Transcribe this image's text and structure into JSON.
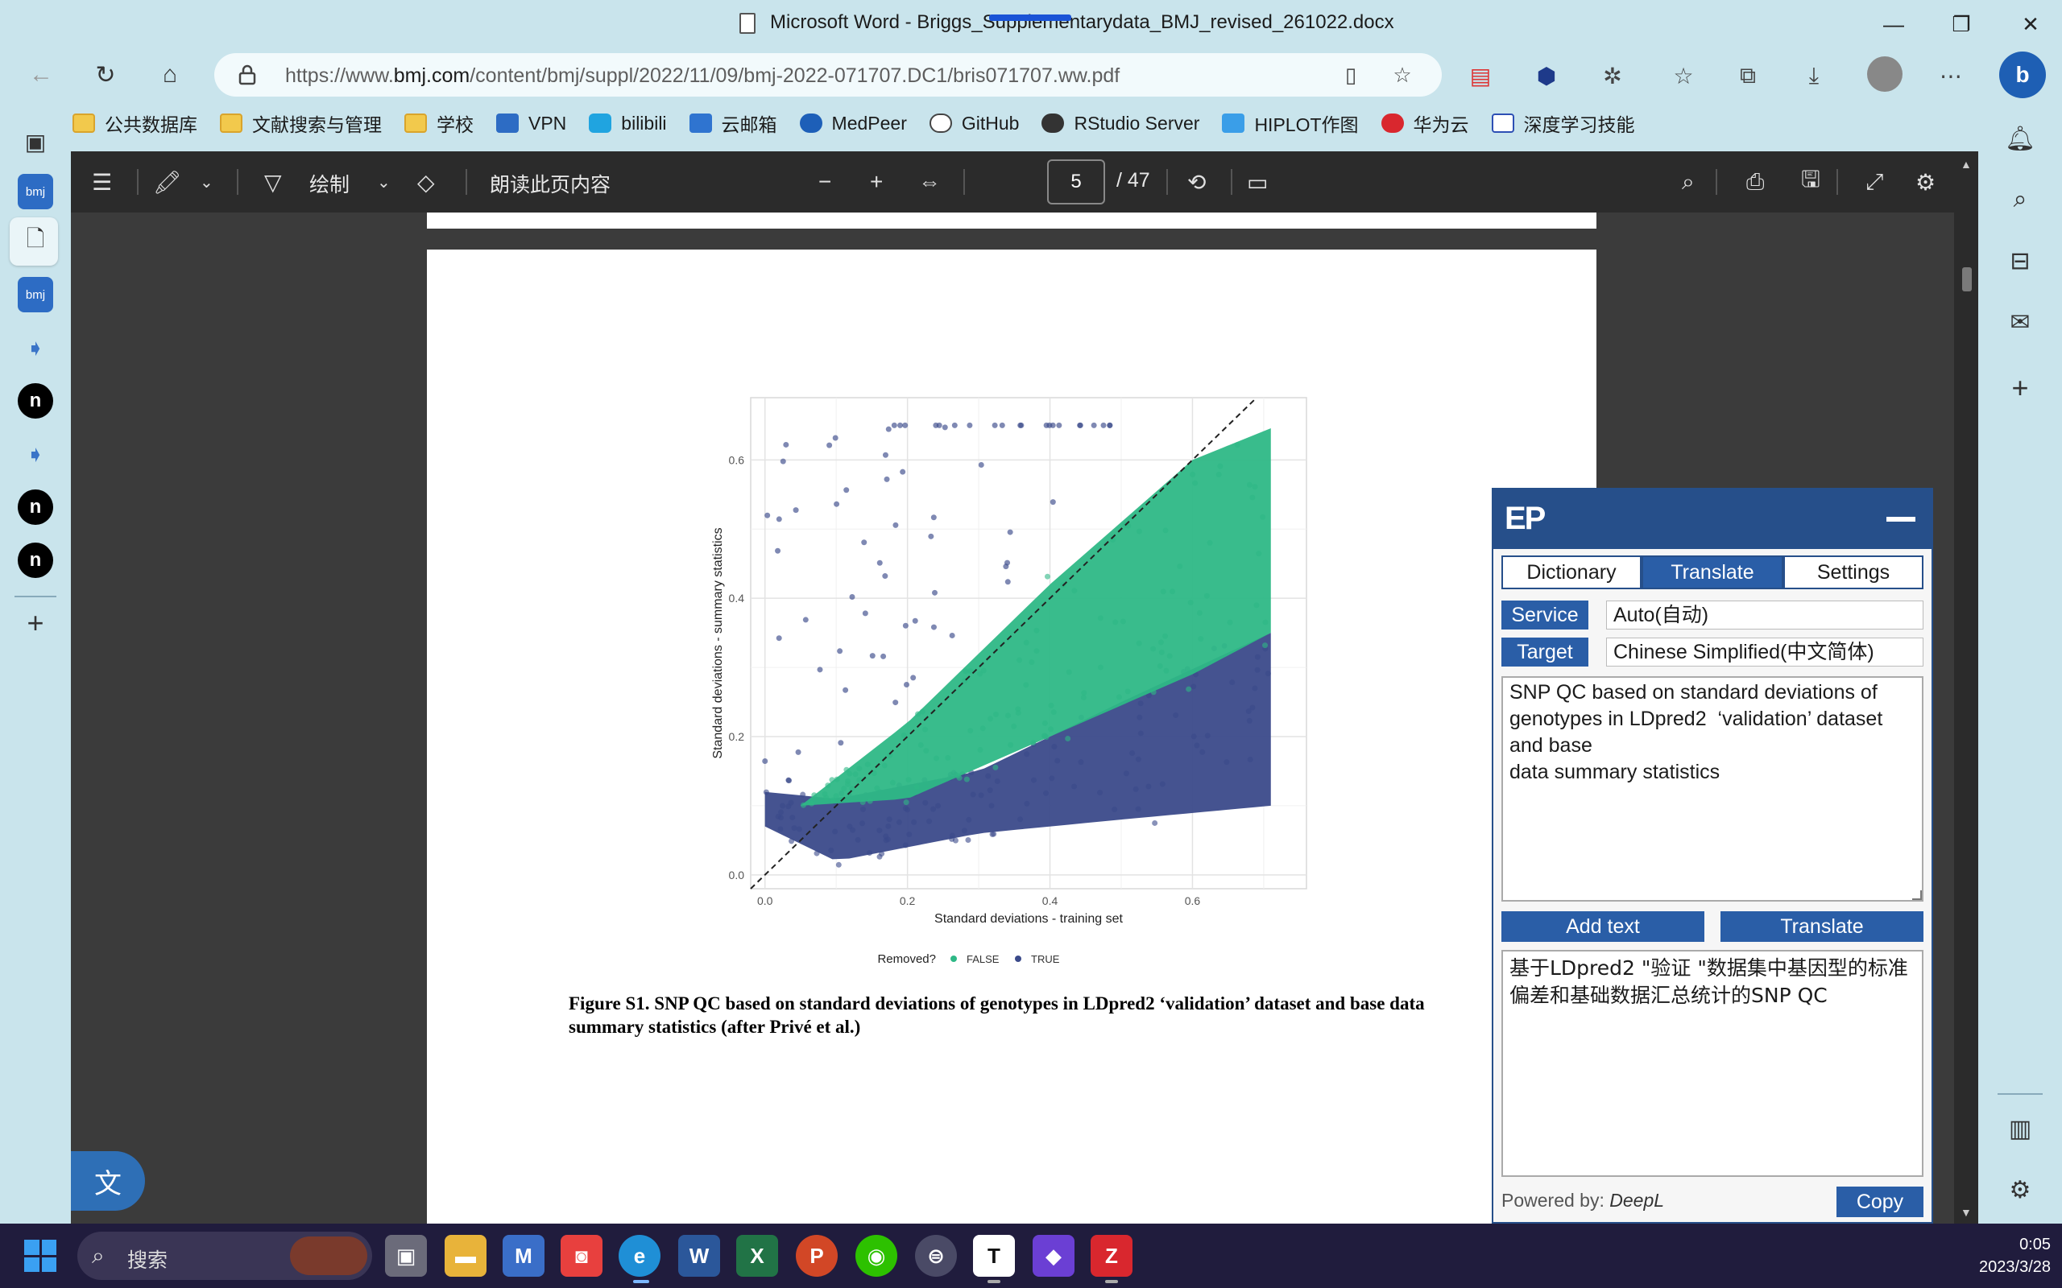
{
  "window": {
    "title": "Microsoft Word - Briggs_Supplementarydata_BMJ_revised_261022.docx"
  },
  "browser": {
    "url_prefix": "https://www.",
    "url_domain": "bmj.com",
    "url_path": "/content/bmj/suppl/2022/11/09/bmj-2022-071707.DC1/bris071707.ww.pdf"
  },
  "bookmarks": [
    {
      "label": "公共数据库",
      "icon": "folder-icon"
    },
    {
      "label": "文献搜索与管理",
      "icon": "folder-icon"
    },
    {
      "label": "学校",
      "icon": "folder-icon"
    },
    {
      "label": "VPN",
      "icon": "vpn-icon"
    },
    {
      "label": "bilibili",
      "icon": "bilibili-icon"
    },
    {
      "label": "云邮箱",
      "icon": "mail-icon"
    },
    {
      "label": "MedPeer",
      "icon": "medpeer-icon"
    },
    {
      "label": "GitHub",
      "icon": "github-icon"
    },
    {
      "label": "RStudio Server",
      "icon": "rstudio-icon"
    },
    {
      "label": "HIPLOT作图",
      "icon": "hiplot-icon"
    },
    {
      "label": "华为云",
      "icon": "huawei-icon"
    },
    {
      "label": "深度学习技能",
      "icon": "book-icon"
    }
  ],
  "left_sidebar": {
    "bmj_label": "bmj",
    "n_label": "n"
  },
  "pdf_toolbar": {
    "draw_label": "绘制",
    "read_aloud_label": "朗读此页内容",
    "current_page": "5",
    "total_pages": "/ 47"
  },
  "figure": {
    "caption": "Figure S1. SNP QC based on standard deviations of genotypes in LDpred2 ‘validation’ dataset and base data summary statistics (after Privé et al.)"
  },
  "chart_data": {
    "type": "scatter",
    "xlabel": "Standard deviations - training set",
    "ylabel": "Standard deviations - summary statistics",
    "x_ticks": [
      "0.0",
      "0.2",
      "0.4",
      "0.6"
    ],
    "y_ticks": [
      "0.0",
      "0.2",
      "0.4",
      "0.6"
    ],
    "xlim": [
      -0.02,
      0.76
    ],
    "ylim": [
      -0.02,
      0.69
    ],
    "reference_line": {
      "slope": 1,
      "intercept": 0,
      "style": "dashed"
    },
    "legend": {
      "title": "Removed?",
      "position": "bottom"
    },
    "grid": true,
    "series": [
      {
        "name": "FALSE",
        "color": "#2eb886",
        "band_lower": [
          [
            0.05,
            0.1
          ],
          [
            0.2,
            0.11
          ],
          [
            0.4,
            0.2
          ],
          [
            0.6,
            0.29
          ],
          [
            0.71,
            0.35
          ]
        ],
        "band_upper": [
          [
            0.05,
            0.1
          ],
          [
            0.2,
            0.22
          ],
          [
            0.4,
            0.42
          ],
          [
            0.6,
            0.6
          ],
          [
            0.72,
            0.65
          ]
        ]
      },
      {
        "name": "TRUE",
        "color": "#3b4a8a",
        "band_lower": [
          [
            0.0,
            0.07
          ],
          [
            0.1,
            0.02
          ],
          [
            0.3,
            0.06
          ],
          [
            0.5,
            0.08
          ],
          [
            0.71,
            0.1
          ]
        ],
        "band_upper": [
          [
            0.0,
            0.12
          ],
          [
            0.1,
            0.11
          ],
          [
            0.3,
            0.15
          ],
          [
            0.5,
            0.25
          ],
          [
            0.71,
            0.35
          ]
        ]
      }
    ]
  },
  "translator": {
    "logo": "EP",
    "tabs": [
      "Dictionary",
      "Translate",
      "Settings"
    ],
    "service_label": "Service",
    "service_value": "Auto(自动)",
    "target_label": "Target",
    "target_value": "Chinese Simplified(中文简体)",
    "source_text": "SNP QC based on standard deviations of genotypes in LDpred2  ‘validation’ dataset and base\ndata summary statistics",
    "add_text_label": "Add text",
    "translate_label": "Translate",
    "output_text": "基于LDpred2 \"验证 \"数据集中基因型的标准偏差和基础数据汇总统计的SNP QC",
    "powered_prefix": "Powered by: ",
    "powered_service": "DeepL",
    "copy_label": "Copy"
  },
  "taskbar": {
    "search_text": "搜索",
    "time": "0:05",
    "date": "2023/3/28"
  }
}
